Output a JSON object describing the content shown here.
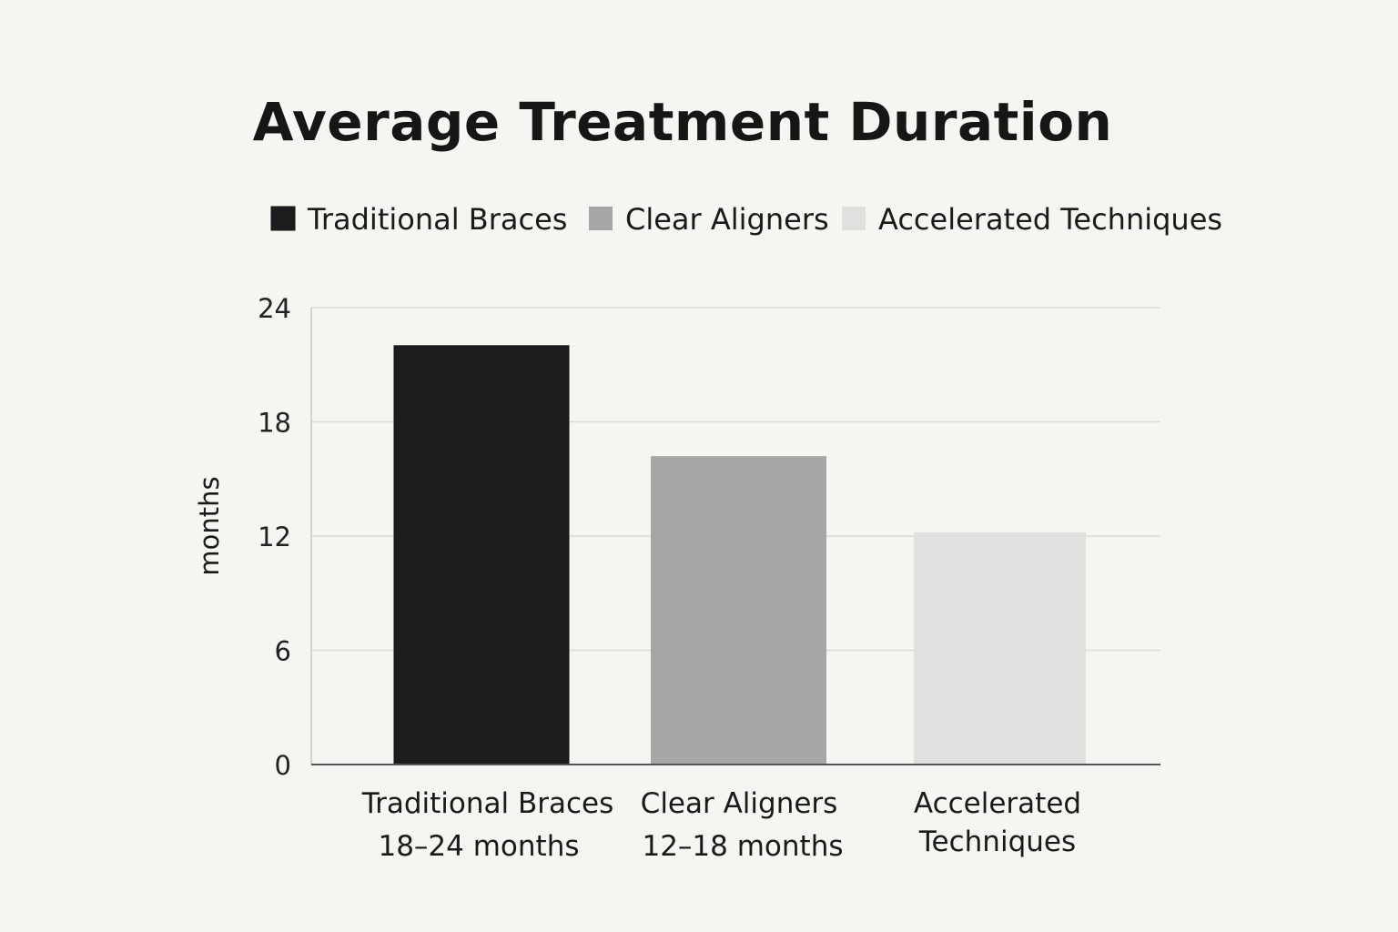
{
  "chart_data": {
    "type": "bar",
    "title": "Average Treatment Duration",
    "ylabel": "months",
    "xlabel": "",
    "ylim": [
      0,
      24
    ],
    "yticks": [
      0,
      6,
      12,
      18,
      24
    ],
    "grid": true,
    "legend_position": "top",
    "categories": [
      {
        "label": "Traditional Braces",
        "sublabel": "18–24 months"
      },
      {
        "label": "Clear Aligners",
        "sublabel": "12–18 months"
      },
      {
        "label": "Accelerated Techniques",
        "label_lines": [
          "Accelerated",
          "Techniques"
        ],
        "sublabel": ""
      }
    ],
    "values": [
      22,
      16.2,
      12.2
    ],
    "series": [
      {
        "name": "Traditional Braces",
        "color": "#1b1d1e"
      },
      {
        "name": "Clear Aligners",
        "color": "#a6a6a6"
      },
      {
        "name": "Accelerated Techniques",
        "color": "#e0e0df"
      }
    ]
  }
}
